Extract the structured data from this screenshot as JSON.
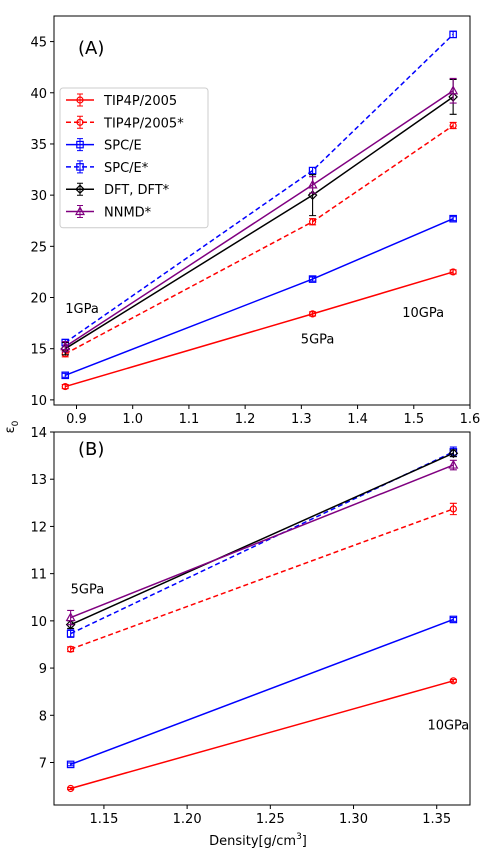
{
  "styles": {
    "TIP4P/2005": {
      "color": "#ff0000",
      "dash": false,
      "marker": "circle"
    },
    "TIP4P/2005*": {
      "color": "#ff0000",
      "dash": true,
      "marker": "circle"
    },
    "SPC/E": {
      "color": "#0000ff",
      "dash": false,
      "marker": "square"
    },
    "SPC/E*": {
      "color": "#0000ff",
      "dash": true,
      "marker": "square"
    },
    "DFT, DFT*": {
      "color": "#000000",
      "dash": false,
      "marker": "diamond"
    },
    "NNMD*": {
      "color": "#800080",
      "dash": false,
      "marker": "triangle"
    }
  },
  "figure": {
    "ylabel": "ε",
    "ylabel_sub": "0",
    "xlabel": "Density[g/cm",
    "xlabel_sup": "3",
    "xlabel_end": "]"
  },
  "chart_data": [
    {
      "type": "line",
      "panel_label": "(A)",
      "x": [
        0.88,
        1.32,
        1.57
      ],
      "xlim": [
        0.86,
        1.6
      ],
      "ylim": [
        9.5,
        47.5
      ],
      "xticks": [
        0.9,
        1.0,
        1.1,
        1.2,
        1.3,
        1.4,
        1.5,
        1.6
      ],
      "xtick_labels": [
        "0.9",
        "1.0",
        "1.1",
        "1.2",
        "1.3",
        "1.4",
        "1.5",
        "1.6"
      ],
      "yticks": [
        10,
        15,
        20,
        25,
        30,
        35,
        40,
        45
      ],
      "ytick_labels": [
        "10",
        "15",
        "20",
        "25",
        "30",
        "35",
        "40",
        "45"
      ],
      "legend_position": "upper-left",
      "annotations": [
        {
          "text": "1GPa",
          "x": 0.88,
          "y": 18.1
        },
        {
          "text": "5GPa",
          "x": 1.32,
          "y": 15.5
        },
        {
          "text": "10GPa",
          "x": 1.57,
          "y": 18.1
        }
      ],
      "series": [
        {
          "name": "TIP4P/2005",
          "values": [
            11.3,
            18.4,
            22.5
          ],
          "err": [
            0.2,
            0.2,
            0.2
          ]
        },
        {
          "name": "TIP4P/2005*",
          "values": [
            14.5,
            27.4,
            36.8
          ],
          "err": [
            0.3,
            0.3,
            0.3
          ]
        },
        {
          "name": "SPC/E",
          "values": [
            12.4,
            21.8,
            27.7
          ],
          "err": [
            0.2,
            0.2,
            0.2
          ]
        },
        {
          "name": "SPC/E*",
          "values": [
            15.6,
            32.4,
            45.7
          ],
          "err": [
            0.3,
            0.3,
            0.3
          ]
        },
        {
          "name": "DFT, DFT*",
          "values": [
            15.0,
            30.0,
            39.6
          ],
          "err": [
            0.6,
            2.0,
            1.7
          ]
        },
        {
          "name": "NNMD*",
          "values": [
            15.2,
            31.0,
            40.2
          ],
          "err": [
            0.5,
            0.8,
            1.2
          ]
        }
      ]
    },
    {
      "type": "line",
      "panel_label": "(B)",
      "x": [
        1.13,
        1.36
      ],
      "xlim": [
        1.12,
        1.37
      ],
      "ylim": [
        6.1,
        14.0
      ],
      "xticks": [
        1.15,
        1.2,
        1.25,
        1.3,
        1.35
      ],
      "xtick_labels": [
        "1.15",
        "1.20",
        "1.25",
        "1.30",
        "1.35"
      ],
      "yticks": [
        7,
        8,
        9,
        10,
        11,
        12,
        13,
        14
      ],
      "ytick_labels": [
        "7",
        "8",
        "9",
        "10",
        "11",
        "12",
        "13",
        "14"
      ],
      "annotations": [
        {
          "text": "5GPa",
          "x": 1.13,
          "y": 10.5
        },
        {
          "text": "10GPa",
          "x": 1.36,
          "y": 7.7
        }
      ],
      "series": [
        {
          "name": "TIP4P/2005",
          "values": [
            6.45,
            8.73
          ],
          "err": [
            0.02,
            0.03
          ]
        },
        {
          "name": "TIP4P/2005*",
          "values": [
            9.4,
            12.37
          ],
          "err": [
            0.05,
            0.12
          ]
        },
        {
          "name": "SPC/E",
          "values": [
            6.96,
            10.03
          ],
          "err": [
            0.03,
            0.04
          ]
        },
        {
          "name": "SPC/E*",
          "values": [
            9.73,
            13.58
          ],
          "err": [
            0.08,
            0.1
          ]
        },
        {
          "name": "DFT, DFT*",
          "values": [
            9.92,
            13.55
          ],
          "err": [
            0.08,
            0.07
          ]
        },
        {
          "name": "NNMD*",
          "values": [
            10.07,
            13.3
          ],
          "err": [
            0.15,
            0.1
          ]
        }
      ]
    }
  ]
}
